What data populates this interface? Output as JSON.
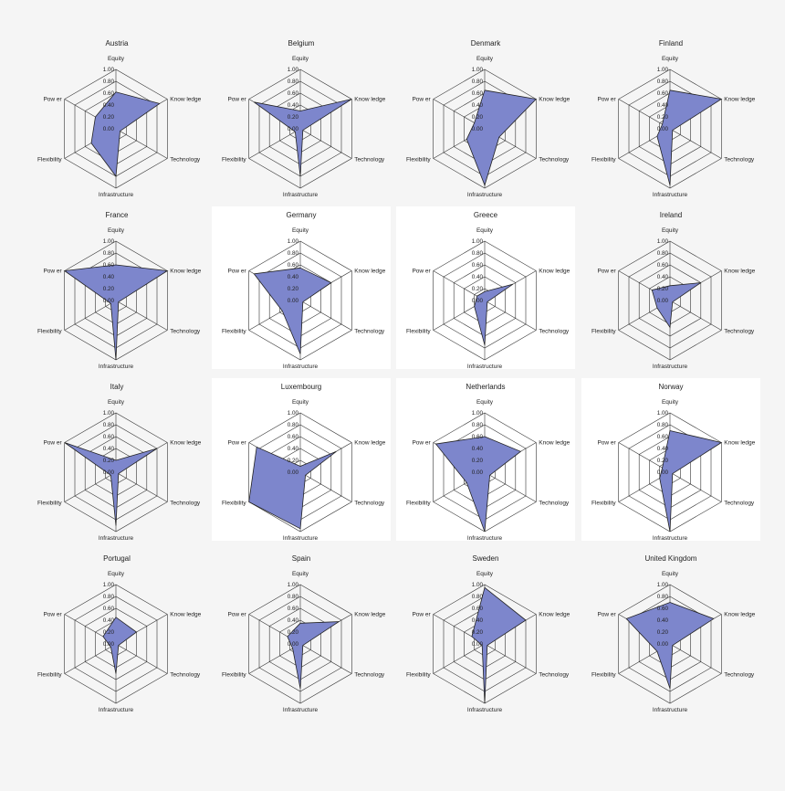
{
  "figure": {
    "background": "#f5f5f5",
    "fill_color": "#7d86cc",
    "stroke_color": "#222222",
    "grid_color": "#333333"
  },
  "chart_data": [
    {
      "type": "radar",
      "title": "Austria",
      "white_bg": false,
      "axes": [
        "Equity",
        "Know ledge",
        "Technology",
        "Infrastructure",
        "Flexibility",
        "Pow er"
      ],
      "rlim": [
        0,
        1
      ],
      "ticks": [
        "0.00",
        "0.20",
        "0.40",
        "0.60",
        "0.80",
        "1.00"
      ],
      "values": [
        0.62,
        0.85,
        0.08,
        0.8,
        0.48,
        0.4
      ]
    },
    {
      "type": "radar",
      "title": "Belgium",
      "white_bg": false,
      "axes": [
        "Equity",
        "Know ledge",
        "Technology",
        "Infrastructure",
        "Flexibility",
        "Pow er"
      ],
      "rlim": [
        0,
        1
      ],
      "ticks": [
        "0.00",
        "0.20",
        "0.40",
        "0.60",
        "0.80",
        "1.00"
      ],
      "values": [
        0.3,
        1.0,
        0.05,
        0.8,
        0.1,
        0.9
      ]
    },
    {
      "type": "radar",
      "title": "Denmark",
      "white_bg": false,
      "axes": [
        "Equity",
        "Know ledge",
        "Technology",
        "Infrastructure",
        "Flexibility",
        "Pow er"
      ],
      "rlim": [
        0,
        1
      ],
      "ticks": [
        "0.00",
        "0.20",
        "0.40",
        "0.60",
        "0.80",
        "1.00"
      ],
      "values": [
        0.65,
        1.0,
        0.28,
        0.95,
        0.35,
        0.2
      ]
    },
    {
      "type": "radar",
      "title": "Finland",
      "white_bg": false,
      "axes": [
        "Equity",
        "Know ledge",
        "Technology",
        "Infrastructure",
        "Flexibility",
        "Pow er"
      ],
      "rlim": [
        0,
        1
      ],
      "ticks": [
        "0.00",
        "0.20",
        "0.40",
        "0.60",
        "0.80",
        "1.00"
      ],
      "values": [
        0.65,
        1.0,
        0.05,
        0.95,
        0.25,
        0.15
      ]
    },
    {
      "type": "radar",
      "title": "France",
      "white_bg": false,
      "axes": [
        "Equity",
        "Know ledge",
        "Technology",
        "Infrastructure",
        "Flexibility",
        "Pow er"
      ],
      "rlim": [
        0,
        1
      ],
      "ticks": [
        "0.00",
        "0.20",
        "0.40",
        "0.60",
        "0.80",
        "1.00"
      ],
      "values": [
        0.6,
        1.0,
        0.05,
        1.0,
        0.1,
        1.0
      ]
    },
    {
      "type": "radar",
      "title": "Germany",
      "white_bg": true,
      "axes": [
        "Equity",
        "Know ledge",
        "Technology",
        "Infrastructure",
        "Flexibility",
        "Pow er"
      ],
      "rlim": [
        0,
        1
      ],
      "ticks": [
        "0.00",
        "0.20",
        "0.40",
        "0.60",
        "0.80",
        "1.00"
      ],
      "values": [
        0.55,
        0.6,
        0.05,
        0.9,
        0.35,
        0.9
      ]
    },
    {
      "type": "radar",
      "title": "Greece",
      "white_bg": true,
      "axes": [
        "Equity",
        "Know ledge",
        "Technology",
        "Infrastructure",
        "Flexibility",
        "Pow er"
      ],
      "rlim": [
        0,
        1
      ],
      "ticks": [
        "0.00",
        "0.20",
        "0.40",
        "0.60",
        "0.80",
        "1.00"
      ],
      "values": [
        0.15,
        0.55,
        0.05,
        0.75,
        0.2,
        0.15
      ]
    },
    {
      "type": "radar",
      "title": "Ireland",
      "white_bg": false,
      "axes": [
        "Equity",
        "Know ledge",
        "Technology",
        "Infrastructure",
        "Flexibility",
        "Pow er"
      ],
      "rlim": [
        0,
        1
      ],
      "ticks": [
        "0.00",
        "0.20",
        "0.40",
        "0.60",
        "0.80",
        "1.00"
      ],
      "values": [
        0.25,
        0.6,
        0.05,
        0.45,
        0.25,
        0.35
      ]
    },
    {
      "type": "radar",
      "title": "Italy",
      "white_bg": false,
      "axes": [
        "Equity",
        "Know ledge",
        "Technology",
        "Infrastructure",
        "Flexibility",
        "Pow er"
      ],
      "rlim": [
        0,
        1
      ],
      "ticks": [
        "0.00",
        "0.20",
        "0.40",
        "0.60",
        "0.80",
        "1.00"
      ],
      "values": [
        0.2,
        0.8,
        0.05,
        0.9,
        0.1,
        1.0
      ]
    },
    {
      "type": "radar",
      "title": "Luxembourg",
      "white_bg": true,
      "axes": [
        "Equity",
        "Know ledge",
        "Technology",
        "Infrastructure",
        "Flexibility",
        "Pow er"
      ],
      "rlim": [
        0,
        1
      ],
      "ticks": [
        "0.00",
        "0.20",
        "0.40",
        "0.60",
        "0.80",
        "1.00"
      ],
      "values": [
        0.1,
        0.7,
        0.1,
        0.95,
        1.0,
        0.85
      ]
    },
    {
      "type": "radar",
      "title": "Netherlands",
      "white_bg": true,
      "axes": [
        "Equity",
        "Know ledge",
        "Technology",
        "Infrastructure",
        "Flexibility",
        "Pow er"
      ],
      "rlim": [
        0,
        1
      ],
      "ticks": [
        "0.00",
        "0.20",
        "0.40",
        "0.60",
        "0.80",
        "1.00"
      ],
      "values": [
        0.6,
        0.7,
        0.1,
        1.0,
        0.35,
        0.95
      ]
    },
    {
      "type": "radar",
      "title": "Norway",
      "white_bg": true,
      "axes": [
        "Equity",
        "Know ledge",
        "Technology",
        "Infrastructure",
        "Flexibility",
        "Pow er"
      ],
      "rlim": [
        0,
        1
      ],
      "ticks": [
        "0.00",
        "0.20",
        "0.40",
        "0.60",
        "0.80",
        "1.00"
      ],
      "values": [
        0.7,
        1.0,
        0.05,
        1.0,
        0.2,
        0.15
      ]
    },
    {
      "type": "radar",
      "title": "Portugal",
      "white_bg": false,
      "axes": [
        "Equity",
        "Know ledge",
        "Technology",
        "Infrastructure",
        "Flexibility",
        "Pow er"
      ],
      "rlim": [
        0,
        1
      ],
      "ticks": [
        "0.00",
        "0.20",
        "0.40",
        "0.60",
        "0.80",
        "1.00"
      ],
      "values": [
        0.45,
        0.4,
        0.05,
        0.5,
        0.1,
        0.25
      ]
    },
    {
      "type": "radar",
      "title": "Spain",
      "white_bg": false,
      "axes": [
        "Equity",
        "Know ledge",
        "Technology",
        "Infrastructure",
        "Flexibility",
        "Pow er"
      ],
      "rlim": [
        0,
        1
      ],
      "ticks": [
        "0.00",
        "0.20",
        "0.40",
        "0.60",
        "0.80",
        "1.00"
      ],
      "values": [
        0.35,
        0.75,
        0.05,
        0.75,
        0.15,
        0.25
      ]
    },
    {
      "type": "radar",
      "title": "Sweden",
      "white_bg": false,
      "axes": [
        "Equity",
        "Know ledge",
        "Technology",
        "Infrastructure",
        "Flexibility",
        "Pow er"
      ],
      "rlim": [
        0,
        1
      ],
      "ticks": [
        "0.00",
        "0.20",
        "0.40",
        "0.60",
        "0.80",
        "1.00"
      ],
      "values": [
        0.95,
        0.8,
        0.05,
        1.0,
        0.05,
        0.25
      ]
    },
    {
      "type": "radar",
      "title": "United Kingdom",
      "white_bg": false,
      "axes": [
        "Equity",
        "Know ledge",
        "Technology",
        "Infrastructure",
        "Flexibility",
        "Pow er"
      ],
      "rlim": [
        0,
        1
      ],
      "ticks": [
        "0.00",
        "0.20",
        "0.40",
        "0.60",
        "0.80",
        "1.00"
      ],
      "values": [
        0.7,
        0.85,
        0.05,
        0.75,
        0.25,
        0.85
      ]
    }
  ]
}
